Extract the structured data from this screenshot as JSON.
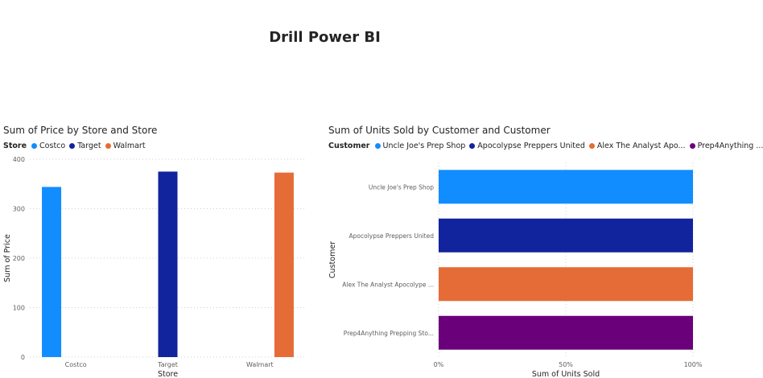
{
  "page": {
    "title": "Drill Power BI"
  },
  "chart_data": [
    {
      "type": "bar",
      "title": "Sum of Price by Store and Store",
      "legend_title": "Store",
      "legend_position": "top-left",
      "xlabel": "Store",
      "ylabel": "Sum of Price",
      "categories": [
        "Costco",
        "Target",
        "Walmart"
      ],
      "series": [
        {
          "name": "Costco",
          "values": [
            344,
            null,
            null
          ],
          "color": "#118DFF"
        },
        {
          "name": "Target",
          "values": [
            null,
            375,
            null
          ],
          "color": "#12239E"
        },
        {
          "name": "Walmart",
          "values": [
            null,
            null,
            373
          ],
          "color": "#E66C37"
        }
      ],
      "yticks": [
        "0",
        "100",
        "200",
        "300",
        "400"
      ],
      "ylim": [
        0,
        400
      ],
      "grid": true
    },
    {
      "type": "bar",
      "orientation": "horizontal",
      "stacking": "100%",
      "title": "Sum of Units Sold by Customer and Customer",
      "legend_title": "Customer",
      "legend_position": "top-left",
      "legend_items": [
        "Uncle Joe's Prep Shop",
        "Apocolypse Preppers United",
        "Alex The Analyst Apo...",
        "Prep4Anything ..."
      ],
      "xlabel": "Sum of Units Sold",
      "ylabel": "Customer",
      "categories": [
        "Uncle Joe's Prep Shop",
        "Apocolypse Preppers United",
        "Alex The Analyst Apocolype ...",
        "Prep4Anything Prepping Sto..."
      ],
      "series": [
        {
          "name": "Uncle Joe's Prep Shop",
          "values": [
            100,
            null,
            null,
            null
          ],
          "color": "#118DFF"
        },
        {
          "name": "Apocolypse Preppers United",
          "values": [
            null,
            100,
            null,
            null
          ],
          "color": "#12239E"
        },
        {
          "name": "Alex The Analyst Apo...",
          "values": [
            null,
            null,
            100,
            null
          ],
          "color": "#E66C37"
        },
        {
          "name": "Prep4Anything ...",
          "values": [
            null,
            null,
            null,
            100
          ],
          "color": "#6B007B"
        }
      ],
      "xticks": [
        "0%",
        "50%",
        "100%"
      ],
      "xlim": [
        0,
        100
      ],
      "grid": true
    }
  ]
}
